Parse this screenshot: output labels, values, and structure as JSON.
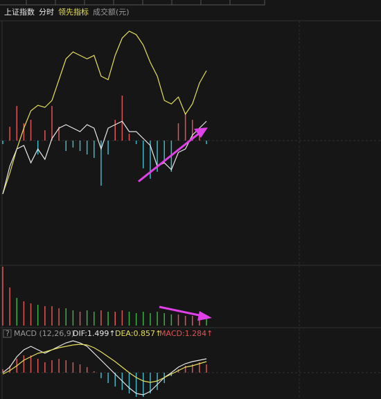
{
  "header": {
    "symbol": "上证指数",
    "period": "分时",
    "indicator": "领先指标",
    "volume_label": "成交额(元)"
  },
  "price_panel": {
    "type": "line",
    "ylim": [
      0,
      350
    ],
    "series": [
      {
        "color": "#e6e05a",
        "values": [
          100,
          130,
          165,
          195,
          220,
          228,
          225,
          235,
          265,
          295,
          305,
          300,
          295,
          300,
          270,
          265,
          300,
          325,
          335,
          330,
          315,
          290,
          270,
          235,
          230,
          240,
          215,
          230,
          260,
          278
        ]
      },
      {
        "color": "#e8e8e8",
        "values": [
          100,
          140,
          165,
          170,
          145,
          165,
          150,
          180,
          195,
          200,
          195,
          190,
          200,
          195,
          165,
          195,
          200,
          205,
          190,
          190,
          180,
          170,
          140,
          145,
          135,
          160,
          165,
          185,
          195,
          205
        ]
      }
    ],
    "bars": {
      "ylim": [
        -177,
        173
      ],
      "up_color": "#e05555",
      "down_color": "#3fb8c8",
      "values": [
        -5,
        20,
        50,
        25,
        30,
        -20,
        15,
        50,
        20,
        -15,
        -10,
        -15,
        -20,
        -25,
        -65,
        -20,
        30,
        65,
        10,
        -5,
        -40,
        -55,
        -45,
        -30,
        -45,
        25,
        40,
        30,
        15,
        -5
      ]
    }
  },
  "volume_panel": {
    "type": "bar",
    "ylim": [
      0,
      85
    ],
    "values": [
      85,
      55,
      40,
      35,
      32,
      30,
      28,
      28,
      25,
      25,
      22,
      20,
      22,
      20,
      22,
      20,
      20,
      22,
      20,
      18,
      20,
      18,
      20,
      18,
      16,
      16,
      14,
      14,
      12,
      10
    ],
    "colors": [
      "#e05555",
      "#e05555",
      "#3cb043",
      "#e05555",
      "#e05555",
      "#3cb043",
      "#e05555",
      "#e05555",
      "#e05555",
      "#3cb043",
      "#3cb043",
      "#e05555",
      "#3cb043",
      "#3cb043",
      "#e05555",
      "#3cb043",
      "#e05555",
      "#e05555",
      "#3cb043",
      "#3cb043",
      "#3cb043",
      "#3cb043",
      "#3cb043",
      "#3cb043",
      "#3cb043",
      "#e05555",
      "#e05555",
      "#e05555",
      "#e05555",
      "#3cb043"
    ]
  },
  "macd_panel": {
    "type": "line",
    "help": "?",
    "title": "MACD (12,26,9)",
    "dif": "DIF:1.499↑",
    "dea": "DEA:0.857↑",
    "macd": "MACD:1.284↑",
    "ylim": [
      -38,
      48
    ],
    "series": [
      {
        "color": "#e8e8e8",
        "values": [
          0,
          8,
          23,
          33,
          38,
          33,
          28,
          33,
          38,
          43,
          46,
          43,
          38,
          28,
          18,
          8,
          -2,
          -12,
          -22,
          -30,
          -32,
          -27,
          -17,
          -7,
          0,
          8,
          13,
          16,
          18,
          20
        ]
      },
      {
        "color": "#e6e05a",
        "values": [
          -2,
          3,
          10,
          18,
          23,
          28,
          30,
          33,
          36,
          38,
          40,
          41,
          40,
          36,
          30,
          23,
          16,
          8,
          0,
          -7,
          -12,
          -14,
          -12,
          -7,
          -2,
          3,
          8,
          10,
          13,
          16
        ]
      }
    ],
    "bars": {
      "up_color": "#e05555",
      "down_color": "#3fb8c8",
      "values": [
        5,
        10,
        20,
        25,
        25,
        20,
        15,
        18,
        20,
        18,
        15,
        12,
        8,
        2,
        -8,
        -15,
        -20,
        -25,
        -30,
        -35,
        -35,
        -30,
        -25,
        -15,
        -5,
        5,
        10,
        12,
        15,
        12
      ]
    }
  }
}
